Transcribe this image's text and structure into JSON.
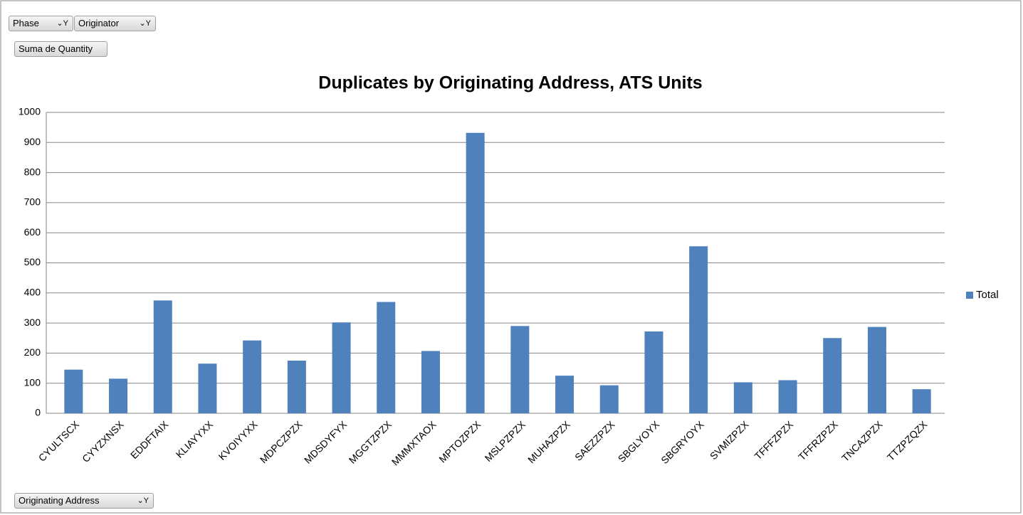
{
  "field_buttons": {
    "page": [
      "Phase",
      "Originator"
    ],
    "values": "Suma de Quantity",
    "axis": "Originating Address"
  },
  "chart_data": {
    "type": "bar",
    "title": "Duplicates by Originating Address, ATS Units",
    "categories": [
      "CYULTSCX",
      "CYYZXNSX",
      "EDDFTAIX",
      "KLIAYYXX",
      "KVOIYYXX",
      "MDPCZPZX",
      "MDSDYFYX",
      "MGGTZPZX",
      "MMMXTAOX",
      "MPTOZPZX",
      "MSLPZPZX",
      "MUHAZPZX",
      "SAEZZPZX",
      "SBGLYOYX",
      "SBGRYOYX",
      "SVMIZPZX",
      "TFFFZPZX",
      "TFFRZPZX",
      "TNCAZPZX",
      "TTZPZQZX"
    ],
    "series": [
      {
        "name": "Total",
        "color": "#4f81bd",
        "values": [
          145,
          115,
          375,
          165,
          242,
          175,
          302,
          370,
          207,
          932,
          290,
          125,
          93,
          272,
          555,
          103,
          110,
          250,
          287,
          80
        ]
      }
    ],
    "ylim": [
      0,
      1000
    ],
    "yticks": [
      0,
      100,
      200,
      300,
      400,
      500,
      600,
      700,
      800,
      900,
      1000
    ],
    "grid": true,
    "legend": "right"
  }
}
